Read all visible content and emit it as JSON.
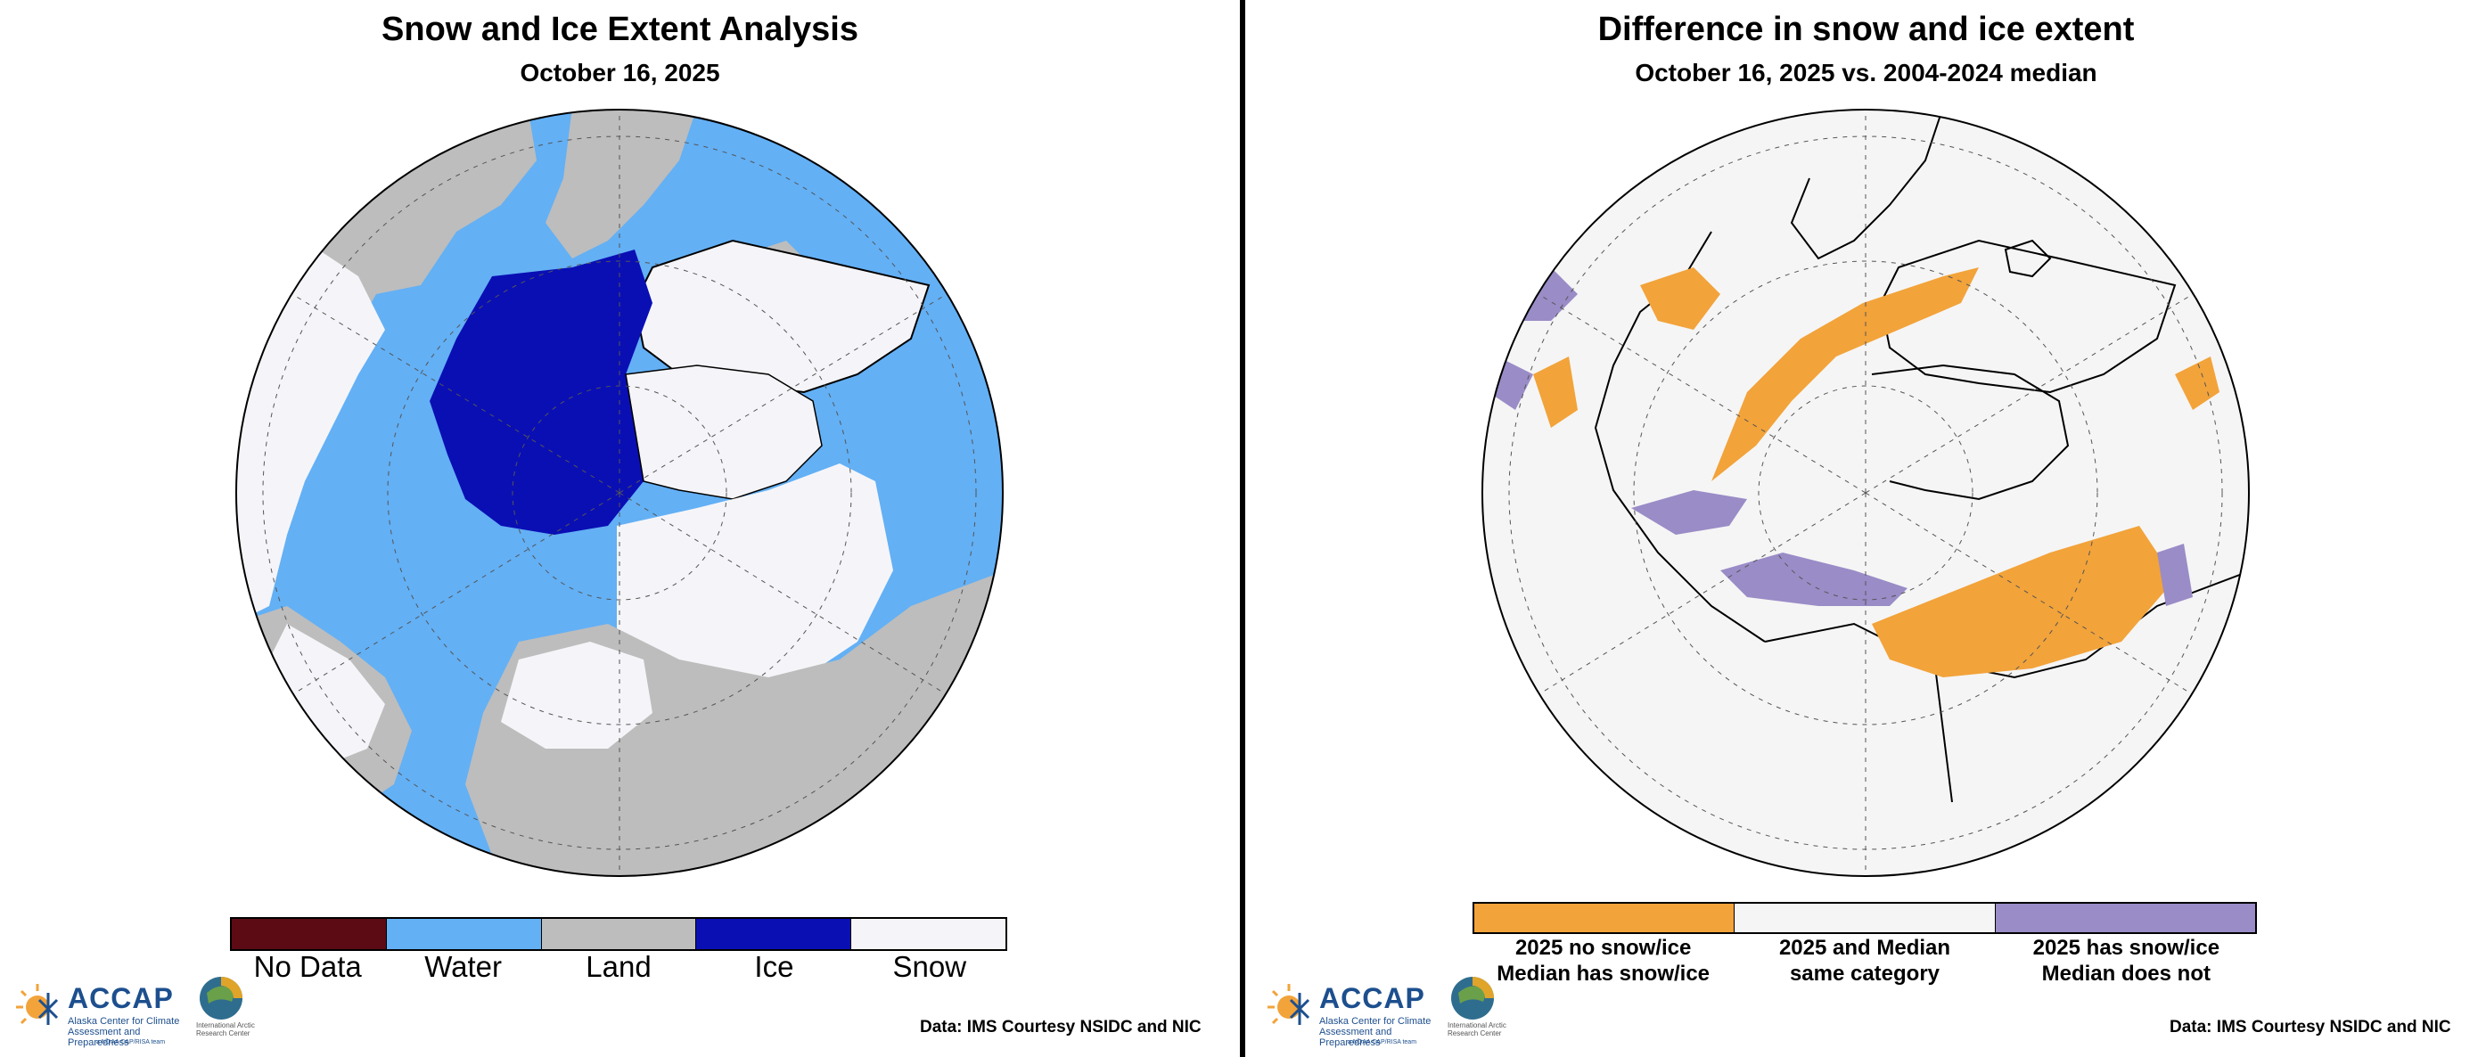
{
  "left_panel": {
    "title": "Snow and Ice Extent Analysis",
    "subtitle": "October 16, 2025",
    "legend": [
      {
        "label": "No Data",
        "color": "#5c0b14"
      },
      {
        "label": "Water",
        "color": "#63b0f5"
      },
      {
        "label": "Land",
        "color": "#bdbdbd"
      },
      {
        "label": "Ice",
        "color": "#0a0fb4"
      },
      {
        "label": "Snow",
        "color": "#f5f5f9"
      }
    ],
    "credit": "Data: IMS Courtesy NSIDC and NIC"
  },
  "right_panel": {
    "title": "Difference in snow and ice extent",
    "subtitle": "October 16, 2025 vs. 2004-2024 median",
    "legend": [
      {
        "line1": "2025 no snow/ice",
        "line2": "Median has snow/ice",
        "color": "#f2a33a"
      },
      {
        "line1": "2025 and Median",
        "line2": "same category",
        "color": "#f5f5f5"
      },
      {
        "line1": "2025 has snow/ice",
        "line2": "Median does not",
        "color": "#9a8cc7"
      }
    ],
    "credit": "Data: IMS Courtesy NSIDC and NIC"
  },
  "logos": {
    "accap": {
      "name": "ACCAP",
      "tagline": "Alaska Center for Climate Assessment and Preparedness",
      "program": "a NOAA CAP/RISA team"
    },
    "iarc": {
      "name": "International Arctic Research Center"
    }
  }
}
